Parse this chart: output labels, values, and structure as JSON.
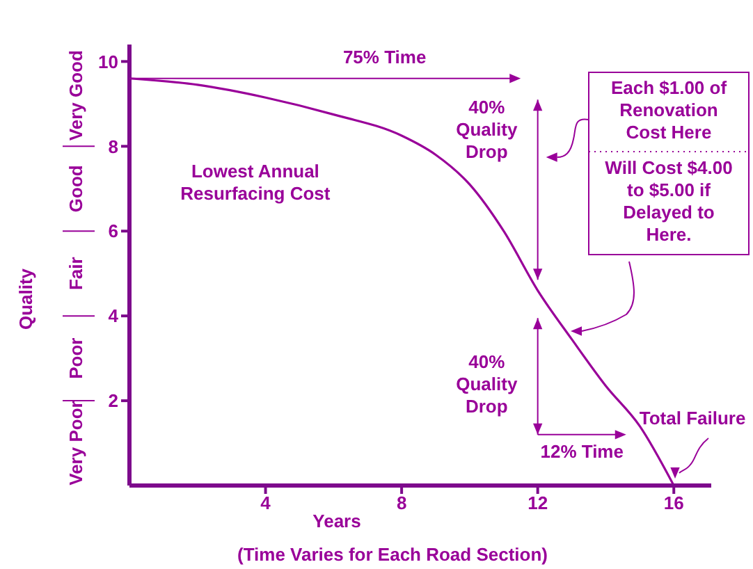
{
  "chart_data": {
    "type": "line",
    "xlabel": "Years",
    "ylabel": "Quality",
    "x": [
      0,
      2,
      4,
      6,
      8,
      9,
      10,
      11,
      12,
      13,
      14,
      15,
      16
    ],
    "series": [
      {
        "color": "#990099",
        "values": [
          9.6,
          9.45,
          9.15,
          8.75,
          8.25,
          7.8,
          7.1,
          6.0,
          4.6,
          3.45,
          2.35,
          1.4,
          0
        ]
      }
    ],
    "xlim": [
      0,
      17.1
    ],
    "ylim": [
      0,
      10.4
    ],
    "xticks": [
      4,
      8,
      12,
      16
    ],
    "yticks": [
      2,
      4,
      6,
      8,
      10
    ],
    "annotations": [
      "75% Time",
      "Lowest Annual Resurfacing Cost",
      "40% Quality Drop",
      "40% Quality Drop",
      "12% Time",
      "Total Failure",
      "Each $1.00 of Renovation Cost Here",
      "Will Cost $4.00 to $5.00 if Delayed to Here.",
      "(Time Varies for Each Road Section)",
      "Very Poor",
      "Poor",
      "Fair",
      "Good",
      "Very Good"
    ],
    "grid": false,
    "legend": false,
    "marker": "none",
    "line_style": "solid"
  }
}
